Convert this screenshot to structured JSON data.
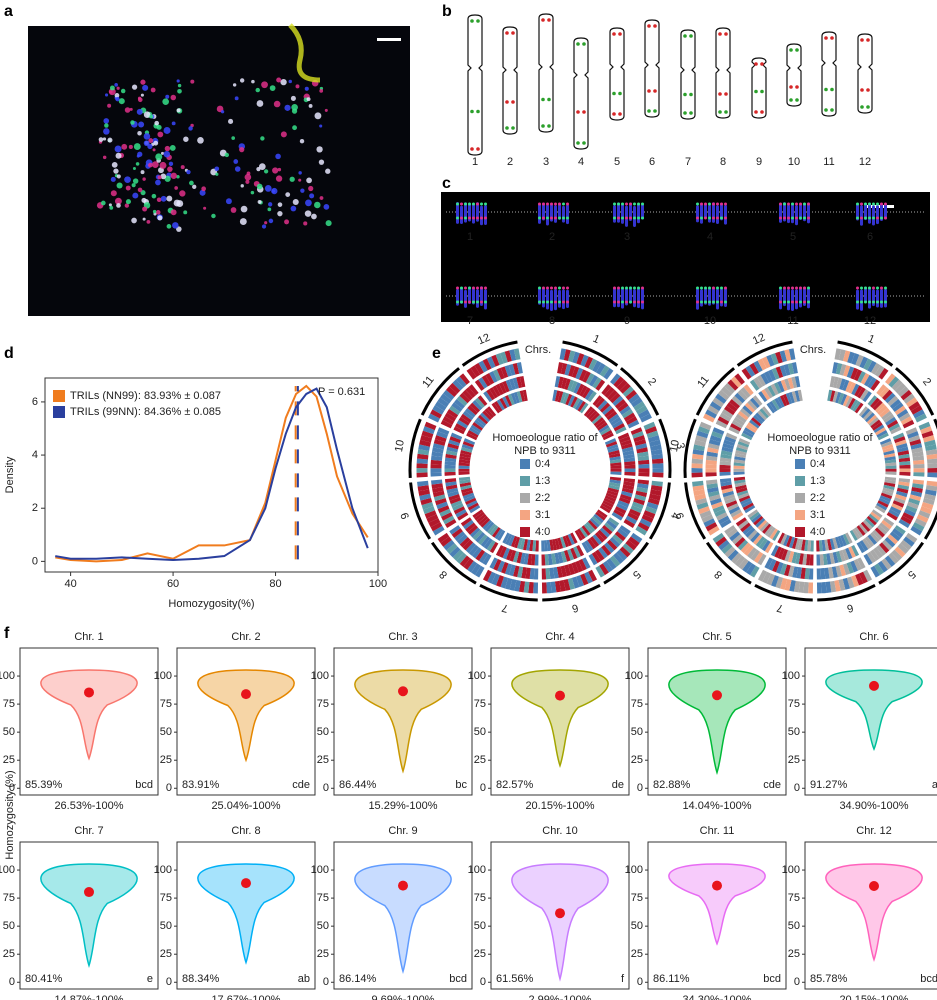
{
  "panel_labels": [
    "a",
    "b",
    "c",
    "d",
    "e",
    "f"
  ],
  "panel_b": {
    "chromosomes": [
      "1",
      "2",
      "3",
      "4",
      "5",
      "6",
      "7",
      "8",
      "9",
      "10",
      "11",
      "12"
    ]
  },
  "panel_c": {
    "chromosomes": [
      "1",
      "2",
      "3",
      "4",
      "5",
      "6",
      "7",
      "8",
      "9",
      "10",
      "11",
      "12"
    ]
  },
  "chart_data": [
    {
      "type": "line",
      "xlabel": "Homozygosity(%)",
      "ylabel": "Density",
      "annotation": "P = 0.631",
      "x": [
        37,
        40,
        45,
        50,
        55,
        60,
        65,
        70,
        75,
        78,
        80,
        82,
        84,
        86,
        88,
        90,
        92,
        95,
        98
      ],
      "series": [
        {
          "name": "TRILs (NN99): 83.93% ± 0.087",
          "color": "#f07c1e",
          "mean": 83.93,
          "values": [
            0.15,
            0.05,
            0.0,
            0.05,
            0.3,
            0.1,
            0.6,
            0.6,
            0.8,
            2.2,
            3.8,
            5.4,
            6.3,
            6.6,
            6.2,
            4.8,
            3.2,
            1.8,
            0.9
          ]
        },
        {
          "name": "TRILs (99NN): 84.36% ± 0.085",
          "color": "#2a3f9e",
          "mean": 84.36,
          "values": [
            0.2,
            0.1,
            0.1,
            0.15,
            0.1,
            0.05,
            0.1,
            0.2,
            0.8,
            2.0,
            3.5,
            4.8,
            5.8,
            6.3,
            6.5,
            5.8,
            4.2,
            2.0,
            0.5
          ]
        }
      ],
      "xlim": [
        35,
        100
      ],
      "xticks": [
        40,
        60,
        80,
        100
      ],
      "ylim": [
        -0.4,
        6.9
      ],
      "yticks": [
        0,
        2,
        4,
        6
      ],
      "legend": "upper left"
    },
    {
      "type": "circos",
      "label": "Chrs.",
      "chromosomes": [
        "1",
        "2",
        "3",
        "4",
        "5",
        "6",
        "7",
        "8",
        "9",
        "10",
        "11",
        "12"
      ],
      "legend_title": [
        "Homoeologue ratio of",
        "NPB to 9311"
      ],
      "legend": [
        {
          "label": "0:4",
          "color": "#4a7fb5"
        },
        {
          "label": "1:3",
          "color": "#5f9ea7"
        },
        {
          "label": "2:2",
          "color": "#a9a9a9"
        },
        {
          "label": "3:1",
          "color": "#f4a582"
        },
        {
          "label": "4:0",
          "color": "#b2182b"
        }
      ]
    },
    {
      "type": "violin",
      "ylabel": "Homozygosity (%)",
      "ylim": [
        -6,
        125
      ],
      "yticks": [
        0,
        25,
        50,
        75,
        100
      ],
      "panels": [
        {
          "title": "Chr. 1",
          "color": "#f8766d",
          "mean": 85.39,
          "mean_label": "85.39%",
          "letter": "bcd",
          "min": 26.53,
          "max": 100,
          "range_label": "26.53%-100%"
        },
        {
          "title": "Chr. 2",
          "color": "#e58700",
          "mean": 83.91,
          "mean_label": "83.91%",
          "letter": "cde",
          "min": 25.04,
          "max": 100,
          "range_label": "25.04%-100%"
        },
        {
          "title": "Chr. 3",
          "color": "#c99800",
          "mean": 86.44,
          "mean_label": "86.44%",
          "letter": "bc",
          "min": 15.29,
          "max": 100,
          "range_label": "15.29%-100%"
        },
        {
          "title": "Chr. 4",
          "color": "#a3a500",
          "mean": 82.57,
          "mean_label": "82.57%",
          "letter": "de",
          "min": 20.15,
          "max": 100,
          "range_label": "20.15%-100%"
        },
        {
          "title": "Chr. 5",
          "color": "#00ba38",
          "mean": 82.88,
          "mean_label": "82.88%",
          "letter": "cde",
          "min": 14.04,
          "max": 100,
          "range_label": "14.04%-100%"
        },
        {
          "title": "Chr. 6",
          "color": "#00bf9a",
          "mean": 91.27,
          "mean_label": "91.27%",
          "letter": "a",
          "min": 34.9,
          "max": 100,
          "range_label": "34.90%-100%"
        },
        {
          "title": "Chr. 7",
          "color": "#00bfc4",
          "mean": 80.41,
          "mean_label": "80.41%",
          "letter": "e",
          "min": 14.87,
          "max": 100,
          "range_label": "14.87%-100%"
        },
        {
          "title": "Chr. 8",
          "color": "#00b0f6",
          "mean": 88.34,
          "mean_label": "88.34%",
          "letter": "ab",
          "min": 17.67,
          "max": 100,
          "range_label": "17.67%-100%"
        },
        {
          "title": "Chr. 9",
          "color": "#619cff",
          "mean": 86.14,
          "mean_label": "86.14%",
          "letter": "bcd",
          "min": 9.69,
          "max": 100,
          "range_label": "9.69%-100%"
        },
        {
          "title": "Chr. 10",
          "color": "#c77cff",
          "mean": 61.56,
          "mean_label": "61.56%",
          "letter": "f",
          "min": 2.99,
          "max": 100,
          "range_label": "2.99%-100%"
        },
        {
          "title": "Chr. 11",
          "color": "#e76bf3",
          "mean": 86.11,
          "mean_label": "86.11%",
          "letter": "bcd",
          "min": 34.3,
          "max": 100,
          "range_label": "34.30%-100%"
        },
        {
          "title": "Chr. 12",
          "color": "#ff62bc",
          "mean": 85.78,
          "mean_label": "85.78%",
          "letter": "bcd",
          "min": 20.15,
          "max": 100,
          "range_label": "20.15%-100%"
        }
      ]
    }
  ]
}
